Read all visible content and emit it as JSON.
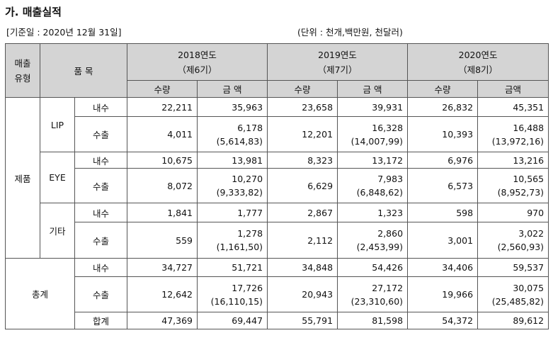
{
  "title": "가. 매출실적",
  "basis": "[기준일 : 2020년 12월 31일]",
  "unit": "(단위 : 천개,백만원, 천달러)",
  "header": {
    "type": "매출\n유형",
    "item": "품 목",
    "years": [
      {
        "label": "2018연도",
        "period": "（제6기）"
      },
      {
        "label": "2019연도",
        "period": "（제7기）"
      },
      {
        "label": "2020연도",
        "period": "（제8기）"
      }
    ],
    "qty": "수량",
    "amount_spaced": "금 액",
    "amount": "금액"
  },
  "sections": {
    "product": {
      "label": "제품",
      "lip": {
        "name": "LIP",
        "domestic": {
          "label": "내수",
          "v": [
            "22,211",
            "35,963",
            "23,658",
            "39,931",
            "26,832",
            "45,351"
          ]
        },
        "export": {
          "label": "수출",
          "v": [
            "4,011",
            "6,178",
            "12,201",
            "16,328",
            "10,393",
            "16,488"
          ],
          "usd": [
            "(5,614,83)",
            "(14,007,99)",
            "(13,972,16)"
          ]
        }
      },
      "eye": {
        "name": "EYE",
        "domestic": {
          "label": "내수",
          "v": [
            "10,675",
            "13,981",
            "8,323",
            "13,172",
            "6,976",
            "13,216"
          ]
        },
        "export": {
          "label": "수출",
          "v": [
            "8,072",
            "10,270",
            "6,629",
            "7,983",
            "6,573",
            "10,565"
          ],
          "usd": [
            "(9,333,82)",
            "(6,848,62)",
            "(8,952,73)"
          ]
        }
      },
      "other": {
        "name": "기타",
        "domestic": {
          "label": "내수",
          "v": [
            "1,841",
            "1,777",
            "2,867",
            "1,323",
            "598",
            "970"
          ]
        },
        "export": {
          "label": "수출",
          "v": [
            "559",
            "1,278",
            "2,112",
            "2,860",
            "3,001",
            "3,022"
          ],
          "usd": [
            "(1,161,50)",
            "(2,453,99)",
            "(2,560,93)"
          ]
        }
      }
    },
    "total": {
      "label": "총계",
      "domestic": {
        "label": "내수",
        "v": [
          "34,727",
          "51,721",
          "34,848",
          "54,426",
          "34,406",
          "59,537"
        ]
      },
      "export": {
        "label": "수출",
        "v": [
          "12,642",
          "17,726",
          "20,943",
          "27,172",
          "19,966",
          "30,075"
        ],
        "usd": [
          "(16,110,15)",
          "(23,310,60)",
          "(25,485,82)"
        ]
      },
      "sum": {
        "label": "합계",
        "v": [
          "47,369",
          "69,447",
          "55,791",
          "81,598",
          "54,372",
          "89,612"
        ]
      }
    }
  }
}
